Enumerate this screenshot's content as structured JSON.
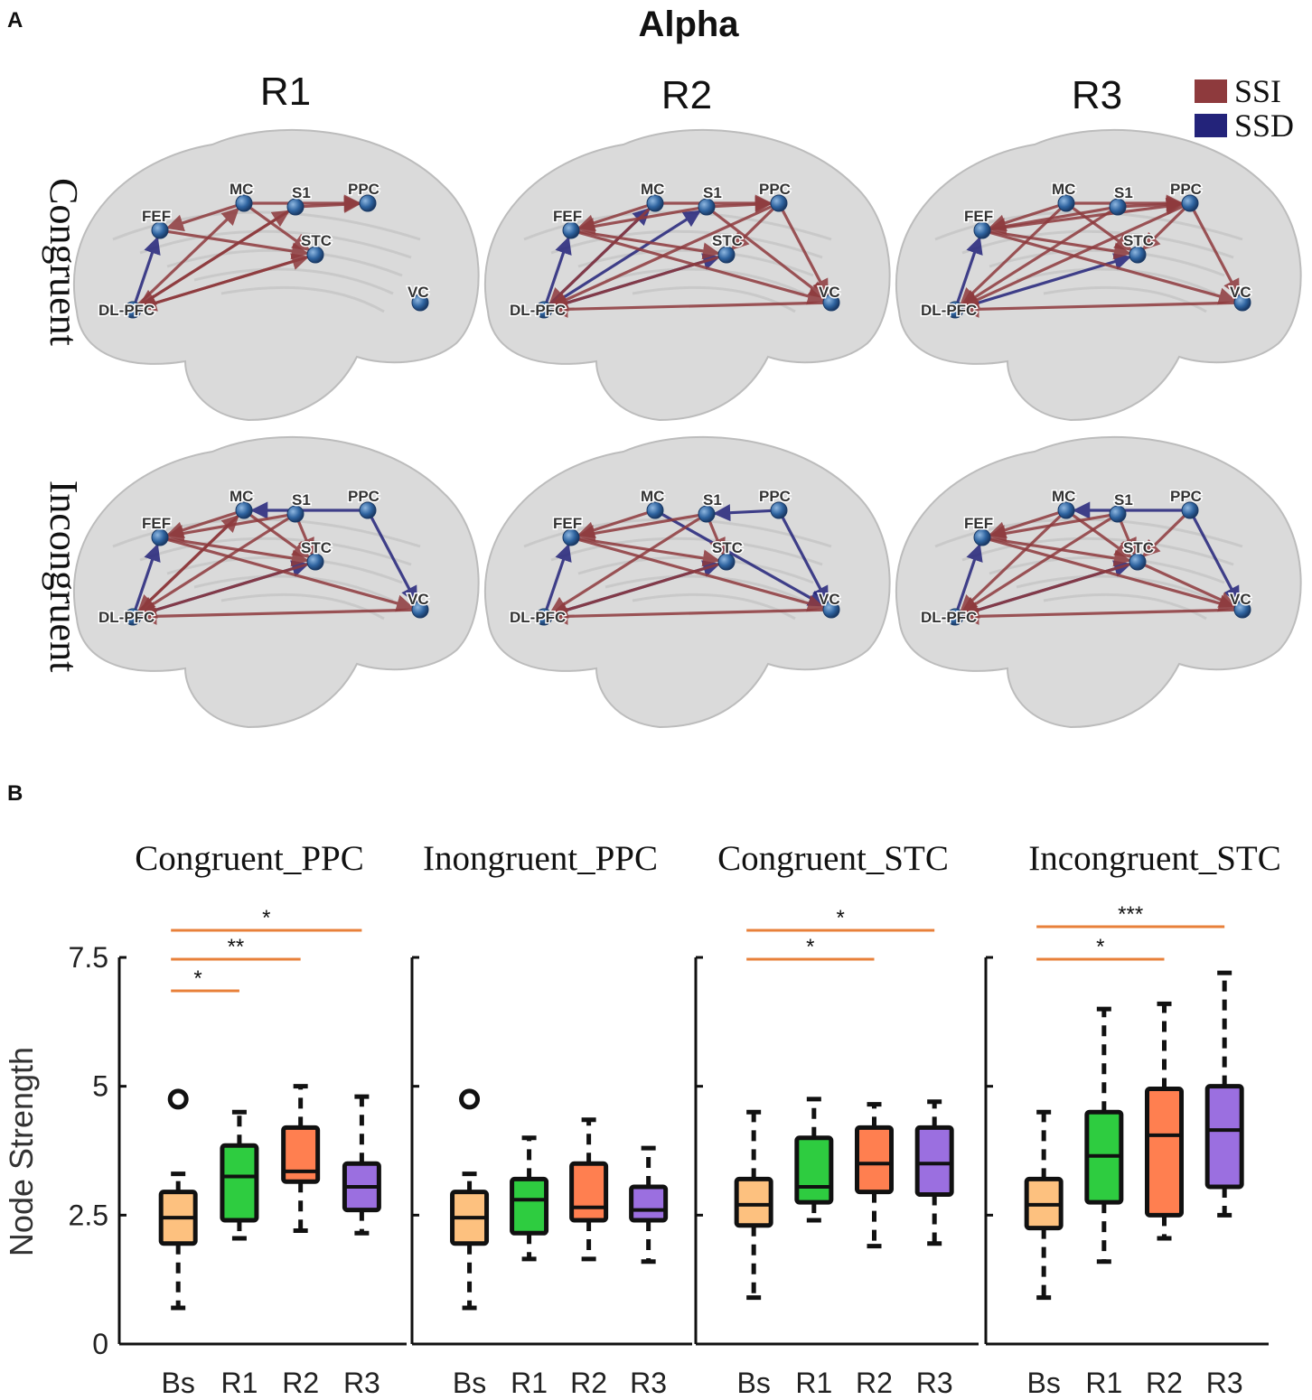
{
  "panel_a": {
    "letter": "A",
    "title": "Alpha",
    "column_titles": [
      "R1",
      "R2",
      "R3"
    ],
    "row_labels": [
      "Congruent",
      "Incongruent"
    ],
    "legend": [
      {
        "label": "SSI",
        "color": "#8e3a3d"
      },
      {
        "label": "SSD",
        "color": "#23237a"
      }
    ],
    "node_labels": [
      "MC",
      "S1",
      "PPC",
      "FEF",
      "STC",
      "DL-PFC",
      "VC"
    ]
  },
  "panel_b": {
    "letter": "B",
    "ylabel": "Node Strength"
  },
  "chart_data": [
    {
      "type": "box",
      "title": "Congruent_PPC",
      "categories": [
        "Bs",
        "R1",
        "R2",
        "R3"
      ],
      "colors": [
        "#fdc17f",
        "#2ecc40",
        "#ff7f50",
        "#9b6fe0"
      ],
      "ylabel": "Node Strength",
      "ylim": [
        0,
        7.5
      ],
      "yticks": [
        "0",
        "2.5",
        "5",
        "7.5"
      ],
      "boxes": [
        {
          "whisker_low": 0.7,
          "q1": 1.95,
          "median": 2.45,
          "q3": 2.95,
          "whisker_high": 3.3,
          "outliers": [
            4.75
          ]
        },
        {
          "whisker_low": 2.05,
          "q1": 2.4,
          "median": 3.25,
          "q3": 3.85,
          "whisker_high": 4.5,
          "outliers": []
        },
        {
          "whisker_low": 2.2,
          "q1": 3.15,
          "median": 3.35,
          "q3": 4.2,
          "whisker_high": 5.0,
          "outliers": []
        },
        {
          "whisker_low": 2.15,
          "q1": 2.6,
          "median": 3.05,
          "q3": 3.5,
          "whisker_high": 4.8,
          "outliers": []
        }
      ],
      "significance": [
        {
          "from": "Bs",
          "to": "R1",
          "label": "*"
        },
        {
          "from": "Bs",
          "to": "R2",
          "label": "**"
        },
        {
          "from": "Bs",
          "to": "R3",
          "label": "*"
        }
      ]
    },
    {
      "type": "box",
      "title": "Inongruent_PPC",
      "categories": [
        "Bs",
        "R1",
        "R2",
        "R3"
      ],
      "colors": [
        "#fdc17f",
        "#2ecc40",
        "#ff7f50",
        "#9b6fe0"
      ],
      "ylim": [
        0,
        7.5
      ],
      "boxes": [
        {
          "whisker_low": 0.7,
          "q1": 1.95,
          "median": 2.45,
          "q3": 2.95,
          "whisker_high": 3.3,
          "outliers": [
            4.75
          ]
        },
        {
          "whisker_low": 1.65,
          "q1": 2.15,
          "median": 2.8,
          "q3": 3.2,
          "whisker_high": 4.0,
          "outliers": []
        },
        {
          "whisker_low": 1.65,
          "q1": 2.4,
          "median": 2.65,
          "q3": 3.5,
          "whisker_high": 4.35,
          "outliers": []
        },
        {
          "whisker_low": 1.6,
          "q1": 2.4,
          "median": 2.6,
          "q3": 3.05,
          "whisker_high": 3.8,
          "outliers": []
        }
      ],
      "significance": []
    },
    {
      "type": "box",
      "title": "Congruent_STC",
      "categories": [
        "Bs",
        "R1",
        "R2",
        "R3"
      ],
      "colors": [
        "#fdc17f",
        "#2ecc40",
        "#ff7f50",
        "#9b6fe0"
      ],
      "ylim": [
        0,
        7.5
      ],
      "boxes": [
        {
          "whisker_low": 0.9,
          "q1": 2.3,
          "median": 2.7,
          "q3": 3.2,
          "whisker_high": 4.5,
          "outliers": []
        },
        {
          "whisker_low": 2.4,
          "q1": 2.75,
          "median": 3.05,
          "q3": 4.0,
          "whisker_high": 4.75,
          "outliers": []
        },
        {
          "whisker_low": 1.9,
          "q1": 2.95,
          "median": 3.5,
          "q3": 4.2,
          "whisker_high": 4.65,
          "outliers": []
        },
        {
          "whisker_low": 1.95,
          "q1": 2.9,
          "median": 3.5,
          "q3": 4.2,
          "whisker_high": 4.7,
          "outliers": []
        }
      ],
      "significance": [
        {
          "from": "Bs",
          "to": "R2",
          "label": "*"
        },
        {
          "from": "Bs",
          "to": "R3",
          "label": "*"
        }
      ]
    },
    {
      "type": "box",
      "title": "Incongruent_STC",
      "categories": [
        "Bs",
        "R1",
        "R2",
        "R3"
      ],
      "colors": [
        "#fdc17f",
        "#2ecc40",
        "#ff7f50",
        "#9b6fe0"
      ],
      "ylim": [
        0,
        7.5
      ],
      "boxes": [
        {
          "whisker_low": 0.9,
          "q1": 2.25,
          "median": 2.7,
          "q3": 3.2,
          "whisker_high": 4.5,
          "outliers": []
        },
        {
          "whisker_low": 1.6,
          "q1": 2.75,
          "median": 3.65,
          "q3": 4.5,
          "whisker_high": 6.5,
          "outliers": []
        },
        {
          "whisker_low": 2.05,
          "q1": 2.5,
          "median": 4.05,
          "q3": 4.95,
          "whisker_high": 6.6,
          "outliers": []
        },
        {
          "whisker_low": 2.5,
          "q1": 3.05,
          "median": 4.15,
          "q3": 5.0,
          "whisker_high": 7.2,
          "outliers": []
        }
      ],
      "significance": [
        {
          "from": "Bs",
          "to": "R2",
          "label": "*"
        },
        {
          "from": "Bs",
          "to": "R3",
          "label": "***"
        }
      ]
    }
  ]
}
